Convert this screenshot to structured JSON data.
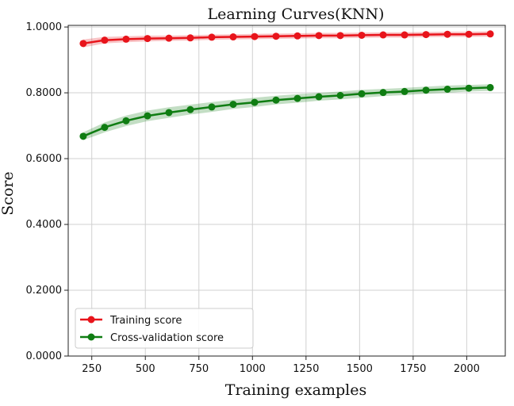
{
  "chart_data": {
    "type": "line",
    "title": "Learning Curves(KNN)",
    "xlabel": "Training examples",
    "ylabel": "Score",
    "xlim": [
      140,
      2180
    ],
    "ylim": [
      0,
      1.005
    ],
    "xticks": [
      250,
      500,
      750,
      1000,
      1250,
      1500,
      1750,
      2000
    ],
    "xtick_labels": [
      "250",
      "500",
      "750",
      "1000",
      "1250",
      "1500",
      "1750",
      "2000"
    ],
    "yticks": [
      0,
      0.2,
      0.4,
      0.6,
      0.8,
      1.0
    ],
    "ytick_labels": [
      "0.0000",
      "0.2000",
      "0.4000",
      "0.6000",
      "0.8000",
      "1.0000"
    ],
    "grid": true,
    "legend_position": "lower-left",
    "x": [
      210,
      310,
      410,
      510,
      610,
      710,
      810,
      910,
      1010,
      1110,
      1210,
      1310,
      1410,
      1510,
      1610,
      1710,
      1810,
      1910,
      2010,
      2110
    ],
    "series": [
      {
        "name": "Training score",
        "color": "#e8141b",
        "values": [
          0.95,
          0.96,
          0.963,
          0.965,
          0.966,
          0.967,
          0.969,
          0.97,
          0.971,
          0.972,
          0.973,
          0.974,
          0.974,
          0.975,
          0.976,
          0.976,
          0.977,
          0.978,
          0.978,
          0.979
        ],
        "band": [
          0.012,
          0.01,
          0.009,
          0.009,
          0.008,
          0.008,
          0.008,
          0.008,
          0.008,
          0.008,
          0.008,
          0.008,
          0.008,
          0.008,
          0.008,
          0.008,
          0.008,
          0.008,
          0.008,
          0.008
        ]
      },
      {
        "name": "Cross-validation score",
        "color": "#0f7d12",
        "values": [
          0.668,
          0.695,
          0.715,
          0.73,
          0.74,
          0.749,
          0.757,
          0.765,
          0.771,
          0.778,
          0.783,
          0.788,
          0.792,
          0.797,
          0.801,
          0.804,
          0.808,
          0.811,
          0.814,
          0.816
        ],
        "band": [
          0.012,
          0.015,
          0.016,
          0.016,
          0.016,
          0.015,
          0.015,
          0.014,
          0.014,
          0.013,
          0.013,
          0.012,
          0.012,
          0.012,
          0.011,
          0.011,
          0.011,
          0.011,
          0.01,
          0.01
        ]
      }
    ]
  }
}
